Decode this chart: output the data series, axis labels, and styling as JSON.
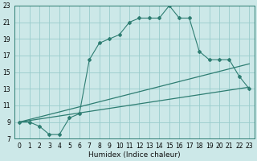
{
  "xlabel": "Humidex (Indice chaleur)",
  "bg_color": "#cce8e8",
  "grid_color": "#99cccc",
  "line_color": "#2e7d72",
  "xlim": [
    -0.5,
    23.5
  ],
  "ylim": [
    7,
    23
  ],
  "xticks": [
    0,
    1,
    2,
    3,
    4,
    5,
    6,
    7,
    8,
    9,
    10,
    11,
    12,
    13,
    14,
    15,
    16,
    17,
    18,
    19,
    20,
    21,
    22,
    23
  ],
  "yticks": [
    7,
    9,
    11,
    13,
    15,
    17,
    19,
    21,
    23
  ],
  "series1_x": [
    0,
    1,
    2,
    3,
    4,
    5,
    6,
    7,
    8,
    9,
    10,
    11,
    12,
    13,
    14,
    15,
    16,
    17,
    18,
    19,
    20,
    21,
    22,
    23
  ],
  "series1_y": [
    9.0,
    9.0,
    8.5,
    7.5,
    7.5,
    9.5,
    10.0,
    16.5,
    18.5,
    19.0,
    19.5,
    21.0,
    21.5,
    21.5,
    21.5,
    23.0,
    21.5,
    21.5,
    17.5,
    16.5,
    16.5,
    16.5,
    14.5,
    13.0
  ],
  "series2_x": [
    0,
    23
  ],
  "series2_y": [
    9.0,
    13.2
  ],
  "series3_x": [
    0,
    23
  ],
  "series3_y": [
    9.0,
    16.0
  ],
  "xlabel_fontsize": 6.5,
  "tick_fontsize": 5.5
}
